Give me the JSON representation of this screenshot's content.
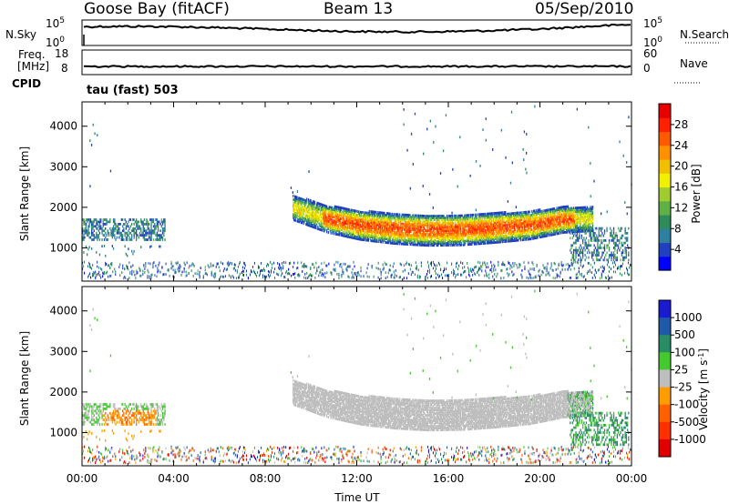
{
  "header": {
    "station": "Goose Bay (fitACF)",
    "beam": "Beam 13",
    "date": "05/Sep/2010"
  },
  "strip_labels": {
    "nsky": "N.Sky",
    "nsearch": "N.Search",
    "freq_line1": "Freq.",
    "freq_line2": "[MHz]",
    "cpid": "CPID",
    "nave": "Nave",
    "cpid_value": "tau (fast) 503",
    "noise_left_top": "10^5",
    "noise_left_bottom": "10^0",
    "noise_right_top": "10^5",
    "noise_right_bottom": "10^0",
    "freq_left_top": "18",
    "freq_left_bottom": "8",
    "freq_right_top": "60",
    "freq_right_bottom": "0"
  },
  "colors": {
    "trace": "#000000",
    "ground_scatter": "#bebebe"
  },
  "chart_data": [
    {
      "type": "heatmap",
      "panel": "power",
      "title": "",
      "xlabel": "",
      "ylabel": "Slant Range [km]",
      "xlim": [
        0,
        24
      ],
      "ylim": [
        180,
        4600
      ],
      "xticks": [
        "00:00",
        "04:00",
        "08:00",
        "12:00",
        "16:00",
        "20:00",
        "00:00"
      ],
      "yticks": [
        1000,
        2000,
        3000,
        4000
      ],
      "colorbar": {
        "label": "Power [dB]",
        "range": [
          0,
          32
        ],
        "ticks": [
          "4",
          "8",
          "12",
          "16",
          "20",
          "24",
          "28"
        ],
        "colors": [
          "#0000ff",
          "#2040c0",
          "#2e7fa0",
          "#2f8c5a",
          "#60b048",
          "#a0cc30",
          "#f0f000",
          "#f0c000",
          "#ff9000",
          "#ff5a00",
          "#ff2000",
          "#e80000"
        ]
      },
      "features": [
        {
          "name": "main_band",
          "hours": [
            9.2,
            22.5
          ],
          "center_km": [
            2000,
            1720,
            1560,
            1480,
            1440,
            1450,
            1500,
            1560,
            1700,
            1720
          ],
          "peak_db": 26
        },
        {
          "name": "early_band",
          "hours": [
            0,
            3.5
          ],
          "center_km": [
            1450
          ],
          "peak_db": 9
        },
        {
          "name": "low_range_clutter",
          "hours": [
            0,
            24
          ],
          "center_km": [
            400
          ],
          "peak_db": 6
        }
      ]
    },
    {
      "type": "heatmap",
      "panel": "velocity",
      "title": "",
      "xlabel": "Time UT",
      "ylabel": "Slant Range [km]",
      "xlim": [
        0,
        24
      ],
      "ylim": [
        180,
        4600
      ],
      "xticks": [
        "00:00",
        "04:00",
        "08:00",
        "12:00",
        "16:00",
        "20:00",
        "00:00"
      ],
      "yticks": [
        1000,
        2000,
        3000,
        4000
      ],
      "colorbar": {
        "label": "Velocity [m s^-1]",
        "ticks": [
          "1000",
          "500",
          "100",
          "25",
          "-25",
          "-100",
          "-500",
          "-1000"
        ],
        "colors": [
          "#1a1ad0",
          "#1e5aa8",
          "#2a8c64",
          "#46c830",
          "#bebebe",
          "#ff9c00",
          "#ff6000",
          "#ff3000",
          "#e00000"
        ]
      },
      "features": [
        {
          "name": "ground_scatter_band",
          "hours": [
            9.2,
            22.5
          ],
          "color": "grey"
        },
        {
          "name": "early_orange_patch",
          "hours": [
            0.9,
            3.2
          ],
          "color": "orange"
        },
        {
          "name": "late_green_patch",
          "hours": [
            21.3,
            24
          ],
          "color": "green"
        }
      ]
    },
    {
      "type": "line",
      "panel": "noise",
      "series": [
        {
          "name": "N.Sky"
        },
        {
          "name": "N.Search"
        }
      ]
    },
    {
      "type": "line",
      "panel": "freq_nave",
      "series": [
        {
          "name": "Freq."
        },
        {
          "name": "Nave"
        }
      ]
    }
  ]
}
